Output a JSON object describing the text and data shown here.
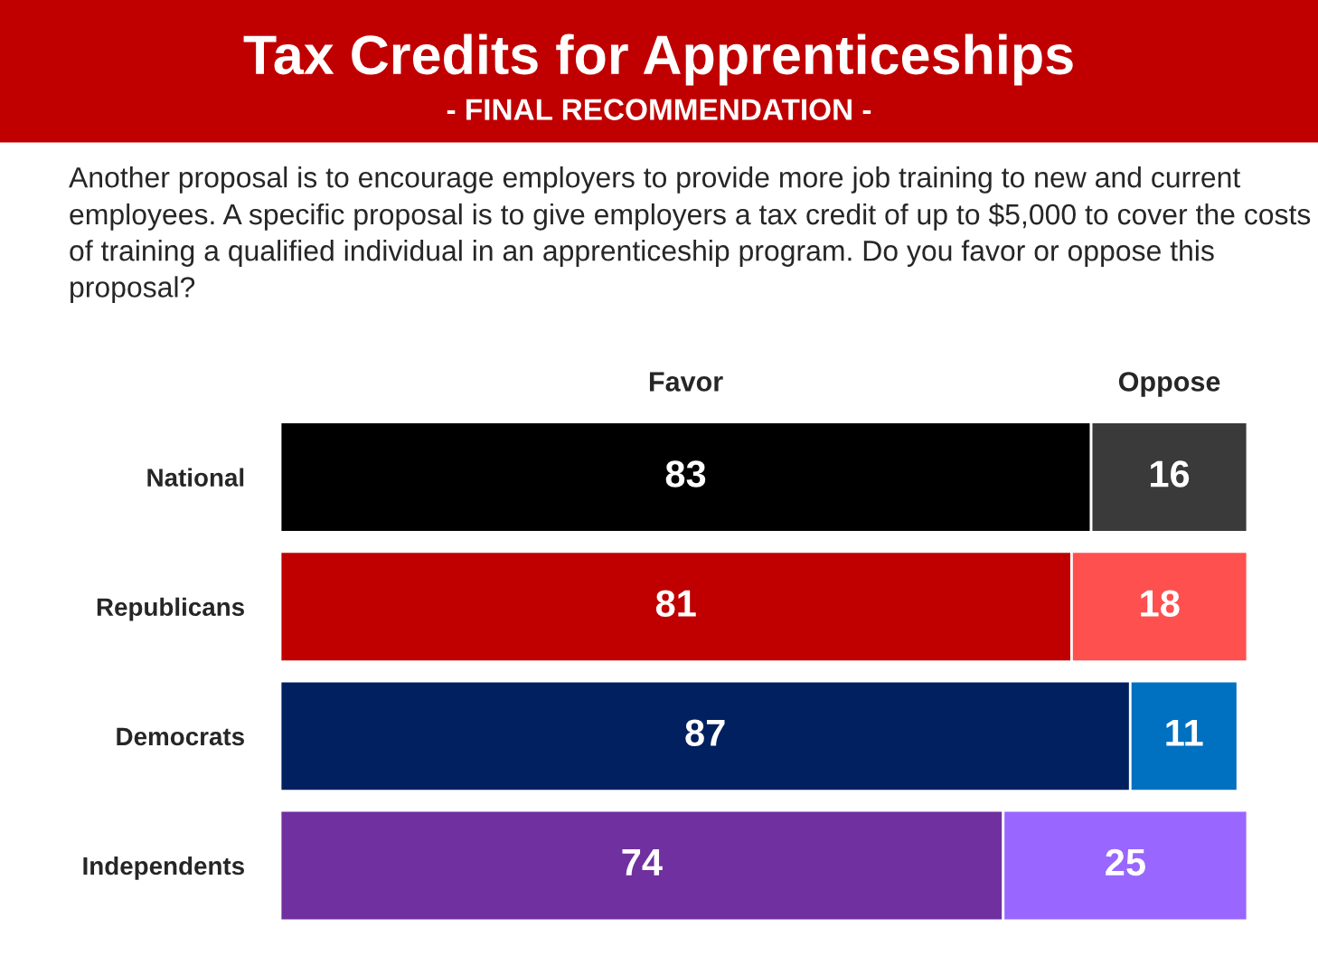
{
  "chart_data": {
    "type": "bar",
    "orientation": "horizontal",
    "stacked": true,
    "data_labels": true,
    "legend": false,
    "title": "Tax Credits for Apprenticeships",
    "subtitle": "- FINAL RECOMMENDATION -",
    "annotations": [
      "Another proposal is to encourage employers to provide more job training to new and current employees. A specific proposal is to give employers a tax credit of up to $5,000 to cover the costs of training a qualified individual in an apprenticeship program. Do you favor or oppose this proposal?"
    ],
    "categories": [
      "National",
      "Republicans",
      "Democrats",
      "Independents"
    ],
    "series": [
      {
        "name": "Favor",
        "values": [
          83,
          81,
          87,
          74
        ],
        "colors": [
          "#000000",
          "#c00000",
          "#002060",
          "#7030a0"
        ]
      },
      {
        "name": "Oppose",
        "values": [
          16,
          18,
          11,
          25
        ],
        "colors": [
          "#3a3a3a",
          "#ff5050",
          "#0070c0",
          "#9966ff"
        ]
      }
    ]
  }
}
